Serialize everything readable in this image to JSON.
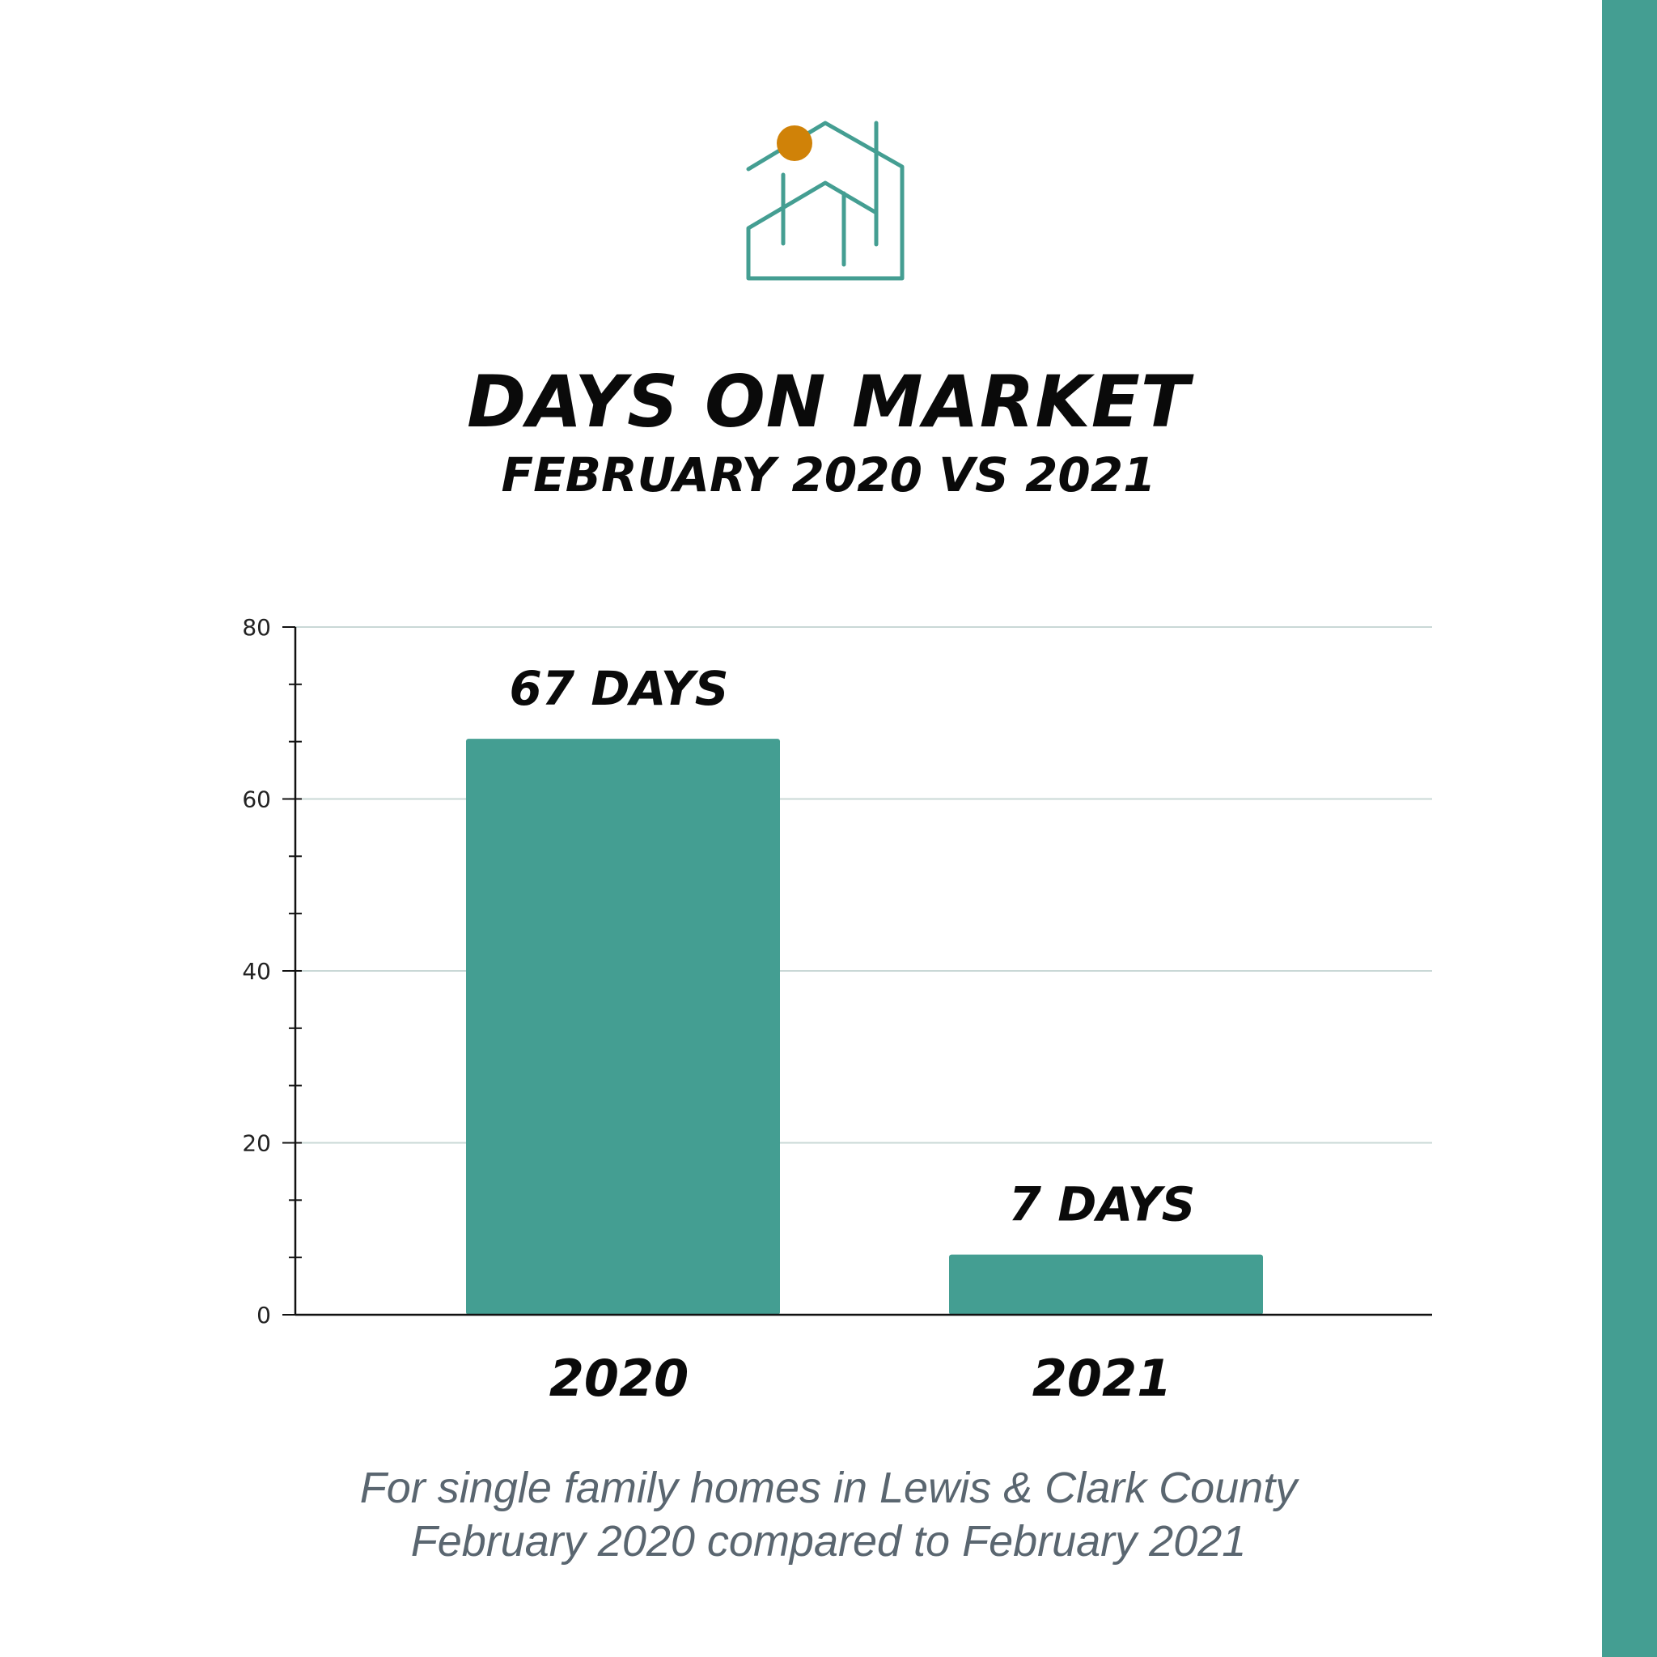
{
  "title": "DAYS ON MARKET",
  "subtitle": "FEBRUARY 2020 VS 2021",
  "caption": {
    "line1": "For single family homes in Lewis & Clark County",
    "line2": "February 2020 compared to February 2021"
  },
  "colors": {
    "bar": "#449e92",
    "accent_dot": "#d08208",
    "side_bar": "#449e92",
    "gridline": "#c9d8d6",
    "axis": "#111111"
  },
  "logo": {
    "icon": "house-outline-icon"
  },
  "chart_data": {
    "type": "bar",
    "categories": [
      "2020",
      "2021"
    ],
    "values": [
      67,
      7
    ],
    "data_labels": [
      "67 DAYS",
      "7 DAYS"
    ],
    "title": "DAYS ON MARKET",
    "subtitle": "FEBRUARY 2020 VS 2021",
    "xlabel": "",
    "ylabel": "",
    "ylim": [
      0,
      80
    ],
    "yticks": [
      0,
      20,
      40,
      60,
      80
    ],
    "minor_tick_step": 6.667,
    "grid": true,
    "legend": "none"
  }
}
